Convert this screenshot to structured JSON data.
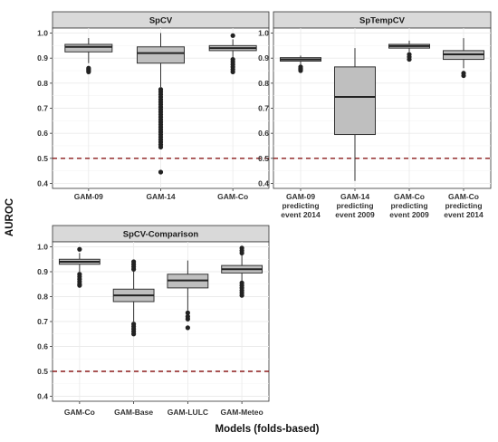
{
  "ylabel": "AUROC",
  "xlabel": "Models (folds-based)",
  "colors": {
    "box_fill": "#bfbfbf",
    "box_stroke": "#333333",
    "reference_line": "#8b1a1a",
    "strip_fill": "#d9d9d9",
    "grid": "#ebebeb"
  },
  "chart_data": [
    {
      "type": "box",
      "title": "SpCV",
      "ylim": [
        0.38,
        1.02
      ],
      "yticks": [
        "0.4",
        "0.5",
        "0.6",
        "0.7",
        "0.8",
        "0.9",
        "1.0"
      ],
      "grid": true,
      "reference_line": 0.5,
      "categories": [
        {
          "label": [
            "GAM-09"
          ],
          "q1": 0.925,
          "median": 0.945,
          "q3": 0.955,
          "whisker_low": 0.88,
          "whisker_high": 0.98,
          "outliers": [
            0.86,
            0.855,
            0.85,
            0.845
          ]
        },
        {
          "label": [
            "GAM-14"
          ],
          "q1": 0.88,
          "median": 0.92,
          "q3": 0.945,
          "whisker_low": 0.785,
          "whisker_high": 1.0,
          "outliers": [
            0.775,
            0.765,
            0.755,
            0.745,
            0.735,
            0.725,
            0.715,
            0.705,
            0.695,
            0.685,
            0.675,
            0.665,
            0.655,
            0.645,
            0.635,
            0.625,
            0.615,
            0.605,
            0.595,
            0.585,
            0.575,
            0.565,
            0.555,
            0.545,
            0.445
          ]
        },
        {
          "label": [
            "GAM-Co"
          ],
          "q1": 0.93,
          "median": 0.94,
          "q3": 0.95,
          "whisker_low": 0.9,
          "whisker_high": 0.975,
          "outliers": [
            0.99,
            0.895,
            0.885,
            0.875,
            0.865,
            0.855,
            0.845
          ]
        }
      ]
    },
    {
      "type": "box",
      "title": "SpTempCV",
      "ylim": [
        0.38,
        1.02
      ],
      "yticks": [
        "0.4",
        "0.5",
        "0.6",
        "0.7",
        "0.8",
        "0.9",
        "1.0"
      ],
      "grid": true,
      "reference_line": 0.5,
      "categories": [
        {
          "label": [
            "GAM-09",
            "predicting",
            "event 2014"
          ],
          "q1": 0.888,
          "median": 0.895,
          "q3": 0.902,
          "whisker_low": 0.872,
          "whisker_high": 0.91,
          "outliers": [
            0.865,
            0.86,
            0.855,
            0.85
          ]
        },
        {
          "label": [
            "GAM-14",
            "predicting",
            "event 2009"
          ],
          "q1": 0.595,
          "median": 0.745,
          "q3": 0.865,
          "whisker_low": 0.41,
          "whisker_high": 0.94,
          "outliers": []
        },
        {
          "label": [
            "GAM-Co",
            "predicting",
            "event 2009"
          ],
          "q1": 0.94,
          "median": 0.948,
          "q3": 0.955,
          "whisker_low": 0.925,
          "whisker_high": 0.97,
          "outliers": [
            0.915,
            0.905,
            0.895
          ]
        },
        {
          "label": [
            "GAM-Co",
            "predicting",
            "event 2014"
          ],
          "q1": 0.895,
          "median": 0.915,
          "q3": 0.93,
          "whisker_low": 0.86,
          "whisker_high": 0.98,
          "outliers": [
            0.84,
            0.83
          ]
        }
      ]
    },
    {
      "type": "box",
      "title": "SpCV-Comparison",
      "ylim": [
        0.38,
        1.02
      ],
      "yticks": [
        "0.4",
        "0.5",
        "0.6",
        "0.7",
        "0.8",
        "0.9",
        "1.0"
      ],
      "grid": true,
      "reference_line": 0.5,
      "categories": [
        {
          "label": [
            "GAM-Co"
          ],
          "q1": 0.93,
          "median": 0.94,
          "q3": 0.95,
          "whisker_low": 0.9,
          "whisker_high": 0.975,
          "outliers": [
            0.99,
            0.89,
            0.88,
            0.87,
            0.86,
            0.85,
            0.845
          ]
        },
        {
          "label": [
            "GAM-Base"
          ],
          "q1": 0.78,
          "median": 0.805,
          "q3": 0.83,
          "whisker_low": 0.7,
          "whisker_high": 0.905,
          "outliers": [
            0.94,
            0.93,
            0.92,
            0.91,
            0.69,
            0.68,
            0.67,
            0.66,
            0.65
          ]
        },
        {
          "label": [
            "GAM-LULC"
          ],
          "q1": 0.835,
          "median": 0.865,
          "q3": 0.89,
          "whisker_low": 0.745,
          "whisker_high": 0.945,
          "outliers": [
            0.735,
            0.72,
            0.71,
            0.675
          ]
        },
        {
          "label": [
            "GAM-Meteo"
          ],
          "q1": 0.895,
          "median": 0.91,
          "q3": 0.925,
          "whisker_low": 0.86,
          "whisker_high": 0.97,
          "outliers": [
            0.995,
            0.985,
            0.975,
            0.855,
            0.845,
            0.835,
            0.825,
            0.815,
            0.805
          ]
        }
      ]
    }
  ]
}
